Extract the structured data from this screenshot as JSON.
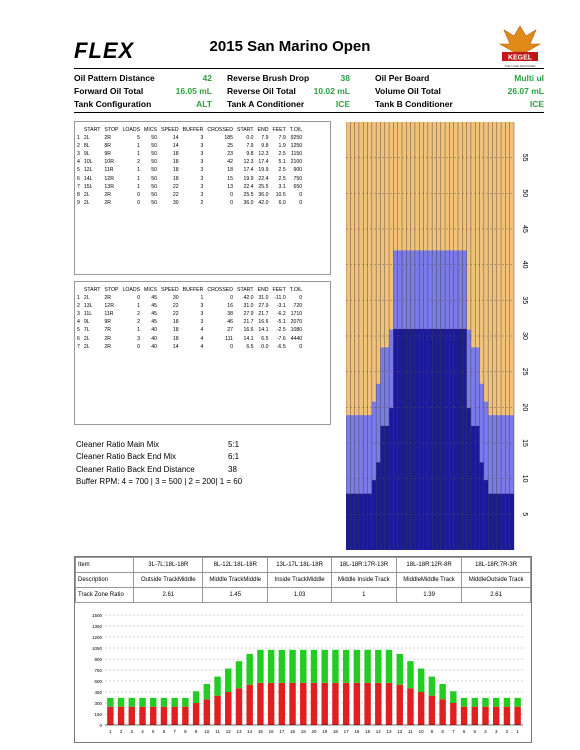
{
  "header": {
    "logo": "FLEX",
    "title": "2015 San Marino Open",
    "badge": "KEGEL",
    "badge_tagline": "THE LANE DESIGNER"
  },
  "info": [
    [
      {
        "label": "Oil Pattern Distance",
        "value": "42"
      },
      {
        "label": "Reverse Brush Drop",
        "value": "38"
      },
      {
        "label": "Oil Per Board",
        "value": "Multi ul"
      }
    ],
    [
      {
        "label": "Forward Oil Total",
        "value": "16.05 mL"
      },
      {
        "label": "Reverse Oil Total",
        "value": "10.02 mL"
      },
      {
        "label": "Volume Oil Total",
        "value": "26.07 mL"
      }
    ],
    [
      {
        "label": "Tank Configuration",
        "value": "ALT"
      },
      {
        "label": "Tank A Conditioner",
        "value": "ICE"
      },
      {
        "label": "Tank B Conditioner",
        "value": "ICE"
      }
    ]
  ],
  "table_headers": [
    "START",
    "STOP",
    "LOADS",
    "MICS",
    "SPEED",
    "BUFFER",
    "CROSSED",
    "START",
    "END",
    "FEET",
    "T.OIL"
  ],
  "forward": [
    [
      "1",
      "2L",
      "2R",
      "5",
      "50",
      "14",
      "3",
      "185",
      "0.0",
      "7.9",
      "7.9",
      "9250"
    ],
    [
      "2",
      "8L",
      "8R",
      "1",
      "50",
      "14",
      "3",
      "25",
      "7.9",
      "9.8",
      "1.9",
      "1250"
    ],
    [
      "3",
      "9L",
      "9R",
      "1",
      "50",
      "18",
      "3",
      "23",
      "9.8",
      "12.3",
      "2.5",
      "1150"
    ],
    [
      "4",
      "10L",
      "10R",
      "2",
      "50",
      "18",
      "3",
      "42",
      "12.3",
      "17.4",
      "5.1",
      "2100"
    ],
    [
      "5",
      "12L",
      "11R",
      "1",
      "50",
      "18",
      "3",
      "18",
      "17.4",
      "19.9",
      "2.5",
      "900"
    ],
    [
      "6",
      "14L",
      "12R",
      "1",
      "50",
      "18",
      "3",
      "15",
      "19.9",
      "22.4",
      "2.5",
      "750"
    ],
    [
      "7",
      "15L",
      "13R",
      "1",
      "50",
      "22",
      "3",
      "13",
      "22.4",
      "25.5",
      "3.1",
      "650"
    ],
    [
      "8",
      "2L",
      "2R",
      "0",
      "50",
      "22",
      "3",
      "0",
      "25.5",
      "36.0",
      "10.5",
      "0"
    ],
    [
      "9",
      "2L",
      "2R",
      "0",
      "50",
      "30",
      "2",
      "0",
      "36.0",
      "42.0",
      "6.0",
      "0"
    ]
  ],
  "reverse": [
    [
      "1",
      "2L",
      "2R",
      "0",
      "45",
      "30",
      "1",
      "0",
      "42.0",
      "31.0",
      "-11.0",
      "0"
    ],
    [
      "2",
      "13L",
      "12R",
      "1",
      "45",
      "22",
      "3",
      "16",
      "31.0",
      "27.9",
      "-3.1",
      "720"
    ],
    [
      "3",
      "11L",
      "11R",
      "2",
      "45",
      "22",
      "3",
      "38",
      "27.9",
      "21.7",
      "-6.2",
      "1710"
    ],
    [
      "4",
      "9L",
      "9R",
      "2",
      "45",
      "18",
      "3",
      "46",
      "21.7",
      "16.6",
      "-5.1",
      "2070"
    ],
    [
      "5",
      "7L",
      "7R",
      "1",
      "40",
      "18",
      "4",
      "27",
      "16.6",
      "14.1",
      "-2.5",
      "1080"
    ],
    [
      "6",
      "2L",
      "2R",
      "3",
      "40",
      "18",
      "4",
      "111",
      "14.1",
      "6.5",
      "-7.6",
      "4440"
    ],
    [
      "7",
      "2L",
      "2R",
      "0",
      "40",
      "14",
      "4",
      "0",
      "6.5",
      "0.0",
      "-6.5",
      "0"
    ]
  ],
  "ratios": [
    {
      "label": "Cleaner Ratio Main Mix",
      "value": "5:1"
    },
    {
      "label": "Cleaner Ratio Back End Mix",
      "value": "6:1"
    },
    {
      "label": "Cleaner Ratio Back End Distance",
      "value": "38"
    }
  ],
  "buffer_rpm": "Buffer RPM: 4 = 700 |  3 = 500 |  2 = 200|  1 = 60",
  "lane_graph": {
    "distance_labels": [
      "5",
      "10",
      "15",
      "20",
      "25",
      "30",
      "35",
      "40",
      "45",
      "50",
      "55"
    ],
    "levels": [
      {
        "feet": 7.9,
        "boards_from_edge": 1
      },
      {
        "feet": 9.8,
        "boards_from_edge": 7
      },
      {
        "feet": 12.3,
        "boards_from_edge": 8
      },
      {
        "feet": 17.4,
        "boards_from_edge": 9
      },
      {
        "feet": 19.9,
        "boards_from_edge": 11
      },
      {
        "feet": 22.4,
        "boards_from_edge": 12
      },
      {
        "feet": 25.5,
        "boards_from_edge": 13
      },
      {
        "feet": 31.0,
        "boards_from_edge": 12
      },
      {
        "feet": 36.0,
        "boards_from_edge": 1
      },
      {
        "feet": 42.0,
        "boards_from_edge": 1
      }
    ],
    "colors": {
      "lane": "#f3c27a",
      "oil_dark": "#1a1a9a",
      "oil_light": "#7b7bea"
    }
  },
  "zones": {
    "headers": [
      "Item",
      "3L-7L:18L-18R",
      "8L-12L:18L-18R",
      "13L-17L:18L-18R",
      "18L-18R:17R-13R",
      "18L-18R:12R-8R",
      "18L-18R:7R-3R"
    ],
    "description": [
      "Description",
      "Outside TrackMiddle",
      "Middle TrackMiddle",
      "Inside TrackMiddle",
      "Middle Inside Track",
      "MiddleMiddle Track",
      "MiddleOutside Track"
    ],
    "ratio": [
      "Track Zone Ratio",
      "2.61",
      "1.45",
      "1.03",
      "1",
      "1.39",
      "2.61"
    ]
  },
  "bar_chart": {
    "type": "bar",
    "y_ticks": [
      "0",
      "150",
      "300",
      "450",
      "600",
      "750",
      "900",
      "1050",
      "1200",
      "1350",
      "1500"
    ],
    "ymax": 1500,
    "categories": [
      "1",
      "2",
      "3",
      "4",
      "5",
      "6",
      "7",
      "8",
      "9",
      "10",
      "11",
      "12",
      "13",
      "14",
      "15",
      "16",
      "17",
      "18",
      "19",
      "20",
      "19",
      "18",
      "17",
      "16",
      "15",
      "14",
      "13",
      "12",
      "11",
      "10",
      "9",
      "8",
      "7",
      "6",
      "5",
      "4",
      "3",
      "2",
      "1"
    ],
    "forward": [
      250,
      250,
      250,
      250,
      250,
      250,
      250,
      250,
      300,
      350,
      400,
      450,
      500,
      550,
      575,
      575,
      575,
      575,
      575,
      575,
      575,
      575,
      575,
      575,
      575,
      575,
      575,
      550,
      500,
      450,
      400,
      350,
      300,
      250,
      250,
      250,
      250,
      250,
      250
    ],
    "reverse": [
      120,
      120,
      120,
      120,
      120,
      120,
      120,
      120,
      160,
      210,
      260,
      320,
      370,
      420,
      450,
      450,
      450,
      450,
      450,
      450,
      450,
      450,
      450,
      450,
      450,
      450,
      450,
      420,
      370,
      320,
      260,
      210,
      160,
      120,
      120,
      120,
      120,
      120,
      120
    ],
    "colors": {
      "forward": "#e02020",
      "reverse": "#22cc22"
    }
  }
}
